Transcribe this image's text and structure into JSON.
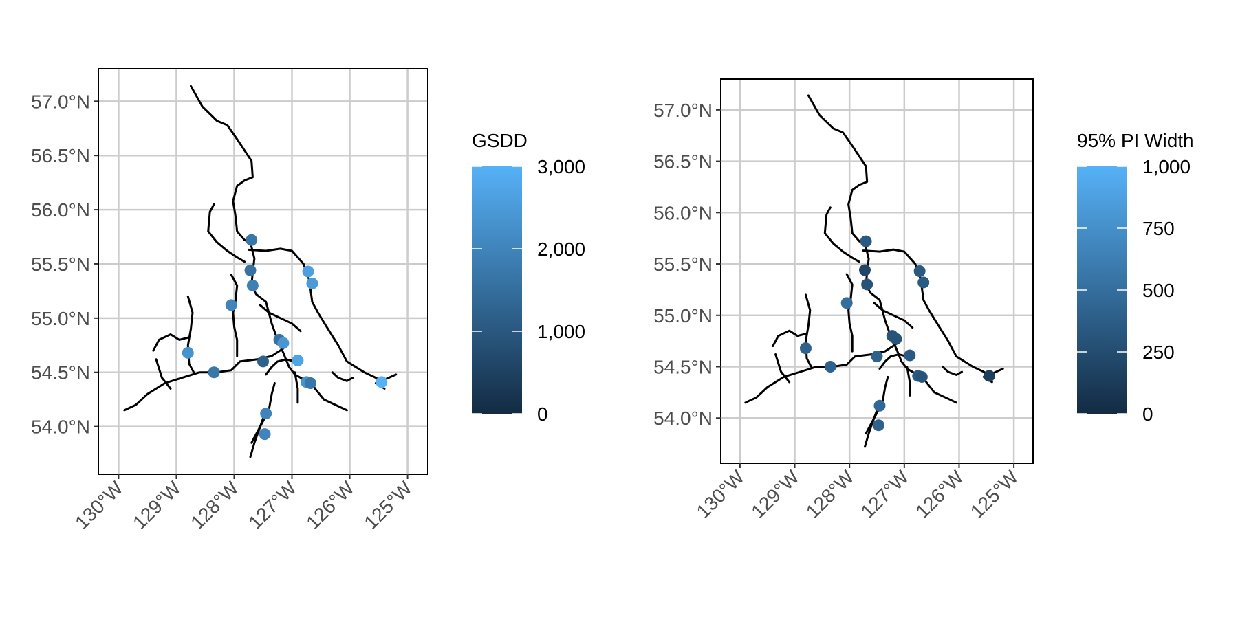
{
  "x_axis": {
    "values": [
      -130,
      -129,
      -128,
      -127,
      -126,
      -125
    ],
    "labels": [
      "130°W",
      "129°W",
      "128°W",
      "127°W",
      "126°W",
      "125°W"
    ]
  },
  "y_axis": {
    "values": [
      54.0,
      54.5,
      55.0,
      55.5,
      56.0,
      56.5,
      57.0
    ],
    "labels": [
      "54.0°N",
      "54.5°N",
      "55.0°N",
      "55.5°N",
      "56.0°N",
      "56.5°N",
      "57.0°N"
    ]
  },
  "colors": {
    "background": "#ffffff",
    "grid": "#cccccc",
    "river": "#000000",
    "scale_low": "#132B43",
    "scale_high": "#56B1F7",
    "tick_text": "#4d4d4d"
  },
  "rivers": [
    [
      [
        -128.75,
        57.14
      ],
      [
        -128.55,
        56.95
      ],
      [
        -128.3,
        56.82
      ],
      [
        -128.12,
        56.78
      ],
      [
        -127.95,
        56.65
      ],
      [
        -127.7,
        56.45
      ],
      [
        -127.68,
        56.3
      ],
      [
        -127.82,
        56.27
      ],
      [
        -127.95,
        56.22
      ],
      [
        -128.02,
        56.08
      ],
      [
        -127.98,
        55.95
      ],
      [
        -127.95,
        55.8
      ],
      [
        -127.82,
        55.72
      ],
      [
        -127.72,
        55.7
      ],
      [
        -127.65,
        55.55
      ],
      [
        -127.68,
        55.42
      ],
      [
        -127.7,
        55.3
      ],
      [
        -127.62,
        55.22
      ],
      [
        -127.45,
        55.15
      ],
      [
        -127.35,
        54.95
      ],
      [
        -127.25,
        54.8
      ],
      [
        -127.15,
        54.68
      ],
      [
        -127.05,
        54.55
      ],
      [
        -126.95,
        54.48
      ],
      [
        -126.75,
        54.42
      ],
      [
        -126.6,
        54.4
      ]
    ],
    [
      [
        -127.75,
        55.63
      ],
      [
        -127.45,
        55.62
      ],
      [
        -127.2,
        55.64
      ],
      [
        -127.0,
        55.62
      ],
      [
        -126.8,
        55.5
      ],
      [
        -126.7,
        55.35
      ],
      [
        -126.65,
        55.15
      ],
      [
        -126.55,
        55.05
      ],
      [
        -126.4,
        54.92
      ],
      [
        -126.2,
        54.75
      ],
      [
        -126.05,
        54.6
      ],
      [
        -125.9,
        54.55
      ],
      [
        -125.75,
        54.5
      ],
      [
        -125.55,
        54.45
      ],
      [
        -125.45,
        54.42
      ],
      [
        -125.2,
        54.48
      ]
    ],
    [
      [
        -128.35,
        56.05
      ],
      [
        -128.42,
        55.98
      ],
      [
        -128.45,
        55.8
      ],
      [
        -128.3,
        55.7
      ],
      [
        -128.12,
        55.62
      ],
      [
        -127.95,
        55.56
      ],
      [
        -127.82,
        55.52
      ]
    ],
    [
      [
        -129.9,
        54.15
      ],
      [
        -129.7,
        54.2
      ],
      [
        -129.5,
        54.3
      ],
      [
        -129.2,
        54.4
      ],
      [
        -128.9,
        54.45
      ],
      [
        -128.6,
        54.5
      ],
      [
        -128.3,
        54.5
      ],
      [
        -128.05,
        54.52
      ],
      [
        -127.9,
        54.6
      ],
      [
        -127.6,
        54.62
      ],
      [
        -127.35,
        54.65
      ],
      [
        -127.15,
        54.72
      ]
    ],
    [
      [
        -128.05,
        55.4
      ],
      [
        -127.95,
        55.3
      ],
      [
        -127.98,
        55.15
      ],
      [
        -128.02,
        55.05
      ],
      [
        -128.0,
        54.92
      ],
      [
        -127.95,
        54.8
      ],
      [
        -127.95,
        54.65
      ]
    ],
    [
      [
        -128.8,
        55.2
      ],
      [
        -128.72,
        55.05
      ],
      [
        -128.75,
        54.9
      ],
      [
        -128.8,
        54.75
      ],
      [
        -128.78,
        54.58
      ],
      [
        -128.7,
        54.5
      ]
    ],
    [
      [
        -129.4,
        54.7
      ],
      [
        -129.3,
        54.8
      ],
      [
        -129.1,
        54.85
      ],
      [
        -128.95,
        54.8
      ],
      [
        -128.8,
        54.82
      ]
    ],
    [
      [
        -129.35,
        54.62
      ],
      [
        -129.25,
        54.45
      ],
      [
        -129.1,
        54.35
      ]
    ],
    [
      [
        -127.45,
        54.48
      ],
      [
        -127.35,
        54.55
      ],
      [
        -127.25,
        54.6
      ],
      [
        -127.1,
        54.62
      ],
      [
        -126.95,
        54.6
      ]
    ],
    [
      [
        -127.55,
        55.12
      ],
      [
        -127.4,
        55.05
      ],
      [
        -127.2,
        55.0
      ],
      [
        -127.0,
        54.95
      ],
      [
        -126.85,
        54.88
      ]
    ],
    [
      [
        -127.3,
        54.4
      ],
      [
        -127.35,
        54.3
      ],
      [
        -127.4,
        54.15
      ],
      [
        -127.5,
        54.05
      ],
      [
        -127.6,
        53.95
      ],
      [
        -127.7,
        53.85
      ]
    ],
    [
      [
        -127.45,
        54.15
      ],
      [
        -127.55,
        54.0
      ],
      [
        -127.65,
        53.85
      ],
      [
        -127.72,
        53.72
      ]
    ],
    [
      [
        -126.7,
        54.45
      ],
      [
        -126.6,
        54.35
      ],
      [
        -126.45,
        54.25
      ],
      [
        -126.25,
        54.2
      ],
      [
        -126.05,
        54.15
      ]
    ],
    [
      [
        -126.95,
        54.5
      ],
      [
        -126.9,
        54.35
      ],
      [
        -126.9,
        54.22
      ]
    ],
    [
      [
        -126.3,
        54.5
      ],
      [
        -126.2,
        54.45
      ],
      [
        -126.05,
        54.42
      ],
      [
        -125.95,
        54.45
      ]
    ],
    [
      [
        -125.55,
        54.4
      ],
      [
        -125.4,
        54.35
      ]
    ]
  ],
  "maps": [
    {
      "legend": {
        "title": "GSDD",
        "breaks": [
          0,
          1000,
          2000,
          3000
        ],
        "labels": [
          "0",
          "1,000",
          "2,000",
          "3,000"
        ],
        "min": 0,
        "max": 3000
      },
      "points": [
        {
          "lon": -127.7,
          "lat": 55.72,
          "value": 1700
        },
        {
          "lon": -127.72,
          "lat": 55.44,
          "value": 1600
        },
        {
          "lon": -127.68,
          "lat": 55.3,
          "value": 1900
        },
        {
          "lon": -128.05,
          "lat": 55.12,
          "value": 2000
        },
        {
          "lon": -126.72,
          "lat": 55.43,
          "value": 2600
        },
        {
          "lon": -126.65,
          "lat": 55.32,
          "value": 2500
        },
        {
          "lon": -128.8,
          "lat": 54.68,
          "value": 2300
        },
        {
          "lon": -128.35,
          "lat": 54.5,
          "value": 1700
        },
        {
          "lon": -127.22,
          "lat": 54.8,
          "value": 1600
        },
        {
          "lon": -127.15,
          "lat": 54.77,
          "value": 2400
        },
        {
          "lon": -127.5,
          "lat": 54.6,
          "value": 1200
        },
        {
          "lon": -126.9,
          "lat": 54.61,
          "value": 2700
        },
        {
          "lon": -126.75,
          "lat": 54.41,
          "value": 2300
        },
        {
          "lon": -126.68,
          "lat": 54.4,
          "value": 1700
        },
        {
          "lon": -127.45,
          "lat": 54.12,
          "value": 2000
        },
        {
          "lon": -127.47,
          "lat": 53.93,
          "value": 2000
        },
        {
          "lon": -125.45,
          "lat": 54.41,
          "value": 3000
        }
      ]
    },
    {
      "legend": {
        "title": "95% PI Width",
        "breaks": [
          0,
          250,
          500,
          750,
          1000
        ],
        "labels": [
          "0",
          "250",
          "500",
          "750",
          "1,000"
        ],
        "min": 0,
        "max": 1000
      },
      "points": [
        {
          "lon": -127.7,
          "lat": 55.72,
          "value": 350
        },
        {
          "lon": -127.72,
          "lat": 55.44,
          "value": 200
        },
        {
          "lon": -127.68,
          "lat": 55.3,
          "value": 300
        },
        {
          "lon": -128.05,
          "lat": 55.12,
          "value": 500
        },
        {
          "lon": -126.72,
          "lat": 55.43,
          "value": 350
        },
        {
          "lon": -126.65,
          "lat": 55.32,
          "value": 350
        },
        {
          "lon": -128.8,
          "lat": 54.68,
          "value": 400
        },
        {
          "lon": -128.35,
          "lat": 54.5,
          "value": 400
        },
        {
          "lon": -127.22,
          "lat": 54.8,
          "value": 300
        },
        {
          "lon": -127.15,
          "lat": 54.77,
          "value": 300
        },
        {
          "lon": -127.5,
          "lat": 54.6,
          "value": 400
        },
        {
          "lon": -126.9,
          "lat": 54.61,
          "value": 350
        },
        {
          "lon": -126.75,
          "lat": 54.41,
          "value": 350
        },
        {
          "lon": -126.68,
          "lat": 54.4,
          "value": 300
        },
        {
          "lon": -127.45,
          "lat": 54.12,
          "value": 450
        },
        {
          "lon": -127.47,
          "lat": 53.93,
          "value": 400
        },
        {
          "lon": -125.45,
          "lat": 54.41,
          "value": 150
        }
      ]
    }
  ]
}
